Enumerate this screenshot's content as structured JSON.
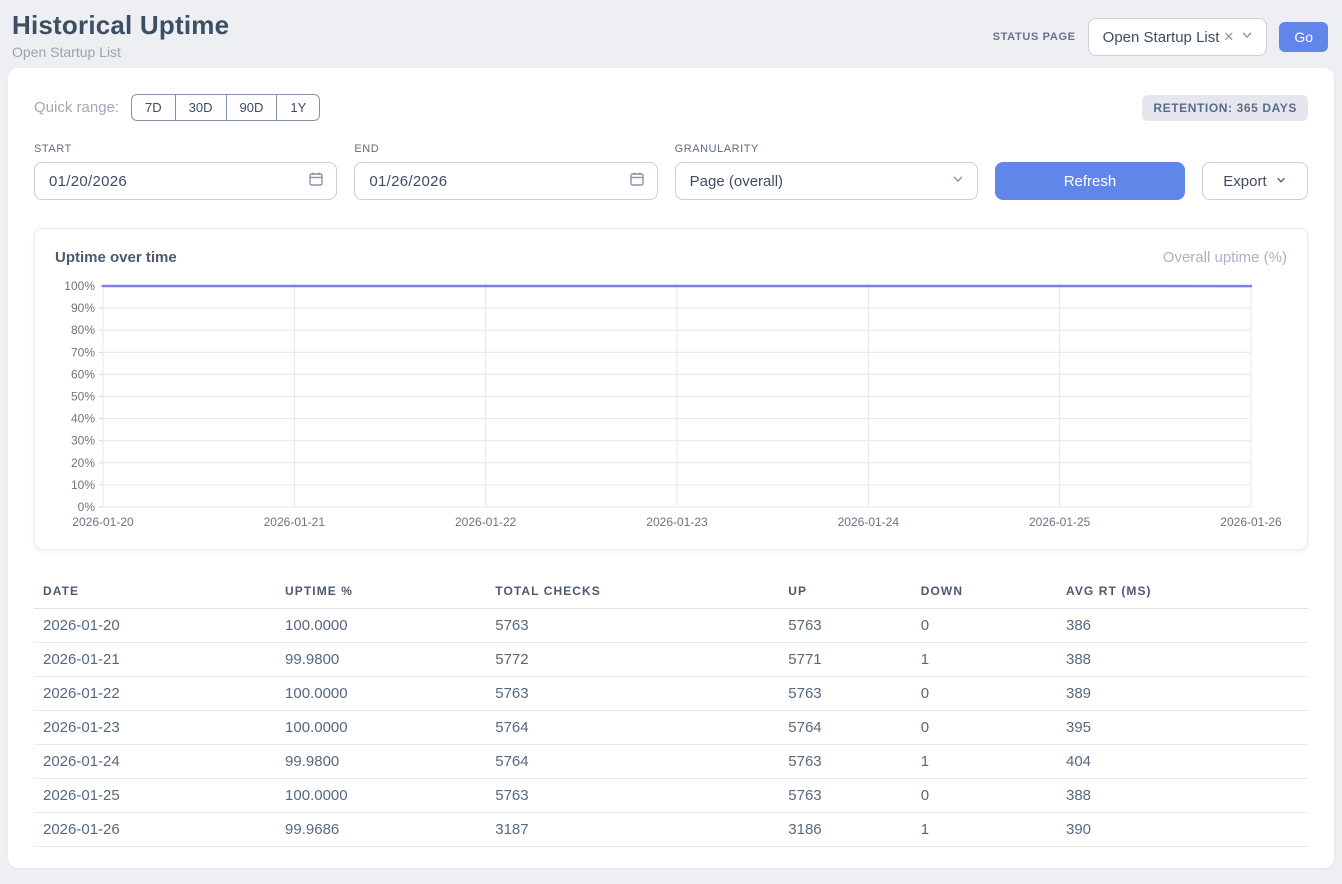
{
  "header": {
    "title": "Historical Uptime",
    "subtitle": "Open Startup List",
    "status_page_label": "STATUS PAGE",
    "status_page_value": "Open Startup List",
    "go_label": "Go"
  },
  "filters": {
    "quick_range_label": "Quick range:",
    "quick_ranges": [
      "7D",
      "30D",
      "90D",
      "1Y"
    ],
    "retention_badge": "RETENTION: 365 DAYS",
    "start_label": "START",
    "start_value": "01/20/2026",
    "end_label": "END",
    "end_value": "01/26/2026",
    "granularity_label": "GRANULARITY",
    "granularity_value": "Page (overall)",
    "refresh_label": "Refresh",
    "export_label": "Export"
  },
  "chart": {
    "title": "Uptime over time",
    "legend": "Overall uptime (%)"
  },
  "chart_data": {
    "type": "line",
    "title": "Uptime over time",
    "x": [
      "2026-01-20",
      "2026-01-21",
      "2026-01-22",
      "2026-01-23",
      "2026-01-24",
      "2026-01-25",
      "2026-01-26"
    ],
    "series": [
      {
        "name": "Overall uptime (%)",
        "values": [
          100.0,
          99.98,
          100.0,
          100.0,
          99.98,
          100.0,
          99.9686
        ]
      }
    ],
    "ylim": [
      0,
      100
    ],
    "y_tick_step": 10,
    "y_tick_suffix": "%",
    "y_ticks": [
      "0%",
      "10%",
      "20%",
      "30%",
      "40%",
      "50%",
      "60%",
      "70%",
      "80%",
      "90%",
      "100%"
    ],
    "grid": true,
    "legend_position": "top-right",
    "line_color": "#7c80e4"
  },
  "table": {
    "columns": [
      "DATE",
      "UPTIME %",
      "TOTAL CHECKS",
      "UP",
      "DOWN",
      "AVG RT (MS)"
    ],
    "col_widths": [
      "19%",
      "16.5%",
      "23%",
      "10.4%",
      "11.4%",
      "19.7%"
    ],
    "rows": [
      [
        "2026-01-20",
        "100.0000",
        "5763",
        "5763",
        "0",
        "386"
      ],
      [
        "2026-01-21",
        "99.9800",
        "5772",
        "5771",
        "1",
        "388"
      ],
      [
        "2026-01-22",
        "100.0000",
        "5763",
        "5763",
        "0",
        "389"
      ],
      [
        "2026-01-23",
        "100.0000",
        "5764",
        "5764",
        "0",
        "395"
      ],
      [
        "2026-01-24",
        "99.9800",
        "5764",
        "5763",
        "1",
        "404"
      ],
      [
        "2026-01-25",
        "100.0000",
        "5763",
        "5763",
        "0",
        "388"
      ],
      [
        "2026-01-26",
        "99.9686",
        "3187",
        "3186",
        "1",
        "390"
      ]
    ]
  },
  "colors": {
    "accent_blue": "#6186ea",
    "line_indigo": "#7c80e4",
    "grid_gray": "#e4e7eb",
    "tick_text": "#6b7482"
  }
}
